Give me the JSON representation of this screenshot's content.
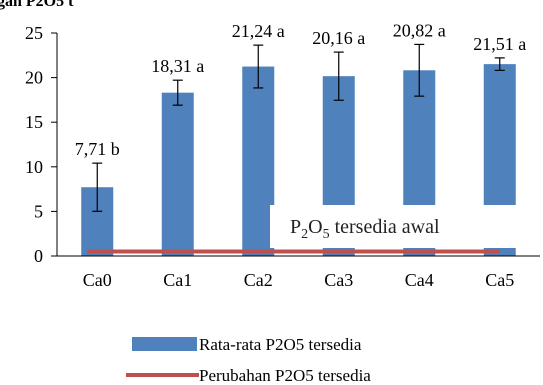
{
  "chart_data": {
    "type": "bar",
    "categories": [
      "Ca0",
      "Ca1",
      "Ca2",
      "Ca3",
      "Ca4",
      "Ca5"
    ],
    "series": [
      {
        "name": "Rata-rata P2O5 tersedia",
        "type": "bar",
        "values": [
          7.71,
          18.31,
          21.24,
          20.16,
          20.82,
          21.51
        ],
        "errors": [
          2.7,
          1.4,
          2.4,
          2.7,
          2.9,
          0.7
        ],
        "labels": [
          "7,71 b",
          "18,31 a",
          "21,24 a",
          "20,16 a",
          "20,82 a",
          "21,51 a"
        ],
        "color": "#4f81bd"
      },
      {
        "name": "Perubahan P2O5 tersedia",
        "type": "line",
        "values": [
          0.5,
          0.5,
          0.5,
          0.5,
          0.5,
          0.5
        ],
        "color": "#c0504d"
      }
    ],
    "yticks": [
      0,
      5,
      10,
      15,
      20,
      25
    ],
    "ylim": [
      0,
      25
    ],
    "annotation": {
      "main": "P",
      "sub1": "2",
      "mid": "O",
      "sub2": "5",
      "tail": " tersedia awal"
    },
    "corner_text": "gan P2O5 t",
    "legend_position": "bottom"
  }
}
